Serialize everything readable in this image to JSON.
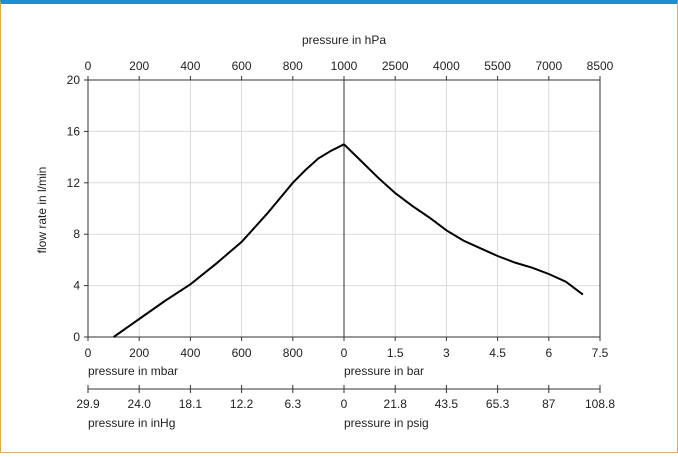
{
  "chart_data": {
    "type": "line",
    "top_axis": {
      "label": "pressure in hPa",
      "ticks": [
        "0",
        "200",
        "400",
        "600",
        "800",
        "1000",
        "2500",
        "4000",
        "5500",
        "7000",
        "8500"
      ]
    },
    "ylabel": "flow rate in l/min",
    "ylim": [
      0,
      20
    ],
    "yticks": [
      "0",
      "4",
      "8",
      "12",
      "16",
      "20"
    ],
    "grid": true,
    "vacuum_side": {
      "xlabel": "pressure in mbar",
      "xlim": [
        0,
        1000
      ],
      "xticks": [
        "0",
        "200",
        "400",
        "600",
        "800"
      ],
      "secondary_label": "pressure in inHg",
      "secondary_ticks": [
        "29.9",
        "24.0",
        "18.1",
        "12.2",
        "6.3"
      ],
      "x": [
        100,
        200,
        300,
        400,
        500,
        600,
        700,
        800,
        850,
        900,
        950,
        1000
      ],
      "y": [
        0,
        1.4,
        2.8,
        4.1,
        5.7,
        7.4,
        9.6,
        12.0,
        13.0,
        13.9,
        14.5,
        15.0
      ]
    },
    "pressure_side": {
      "xlabel": "pressure in bar",
      "xlim": [
        0,
        7.5
      ],
      "xticks": [
        "0",
        "1.5",
        "3",
        "4.5",
        "6",
        "7.5"
      ],
      "secondary_label": "pressure in psig",
      "secondary_ticks": [
        "0",
        "21.8",
        "43.5",
        "65.3",
        "87",
        "108.8"
      ],
      "x": [
        0,
        0.5,
        1,
        1.5,
        2,
        2.5,
        3,
        3.5,
        4,
        4.5,
        5,
        5.5,
        6,
        6.5,
        7
      ],
      "y": [
        15.0,
        13.7,
        12.4,
        11.2,
        10.2,
        9.3,
        8.3,
        7.5,
        6.9,
        6.3,
        5.8,
        5.4,
        4.9,
        4.3,
        3.3
      ]
    }
  }
}
